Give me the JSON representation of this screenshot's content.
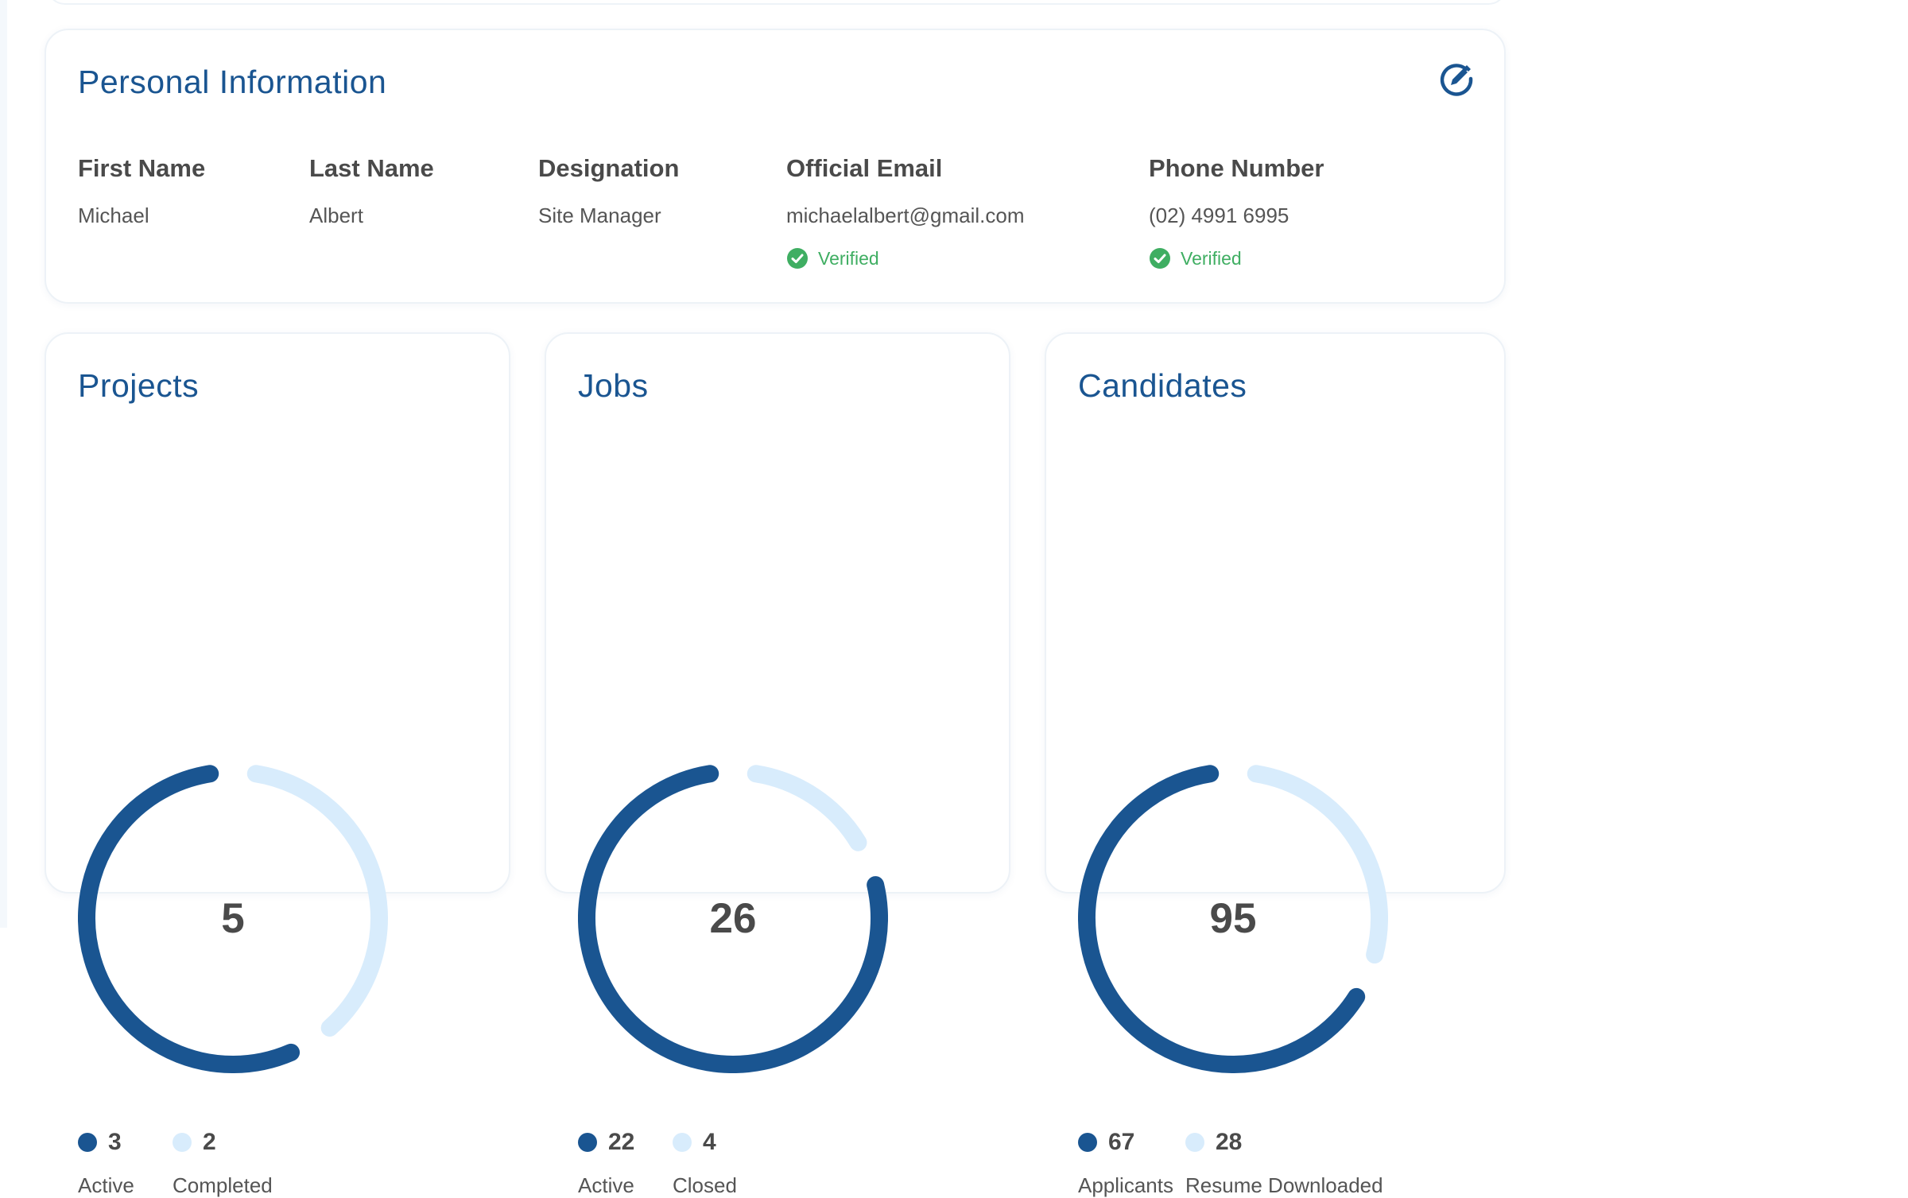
{
  "colors": {
    "primary": "#1a5591",
    "light": "#d8ecfc",
    "success": "#3fae62"
  },
  "personal": {
    "title": "Personal Information",
    "edit_icon": "edit-pen-icon",
    "fields": [
      {
        "label": "First Name",
        "value": "Michael"
      },
      {
        "label": "Last Name",
        "value": "Albert"
      },
      {
        "label": "Designation",
        "value": "Site Manager"
      },
      {
        "label": "Official Email",
        "value": "michaelalbert@gmail.com",
        "status": "Verified"
      },
      {
        "label": "Phone Number",
        "value": "(02) 4991 6995",
        "status": "Verified"
      }
    ]
  },
  "stats": [
    {
      "title": "Projects",
      "total": "5",
      "primary": {
        "value": 3,
        "label": "Active"
      },
      "secondary": {
        "value": 2,
        "label": "Completed"
      }
    },
    {
      "title": "Jobs",
      "total": "26",
      "primary": {
        "value": 22,
        "label": "Active"
      },
      "secondary": {
        "value": 4,
        "label": "Closed"
      }
    },
    {
      "title": "Candidates",
      "total": "95",
      "primary": {
        "value": 67,
        "label": "Applicants"
      },
      "secondary": {
        "value": 28,
        "label": "Resume Downloaded"
      }
    }
  ]
}
